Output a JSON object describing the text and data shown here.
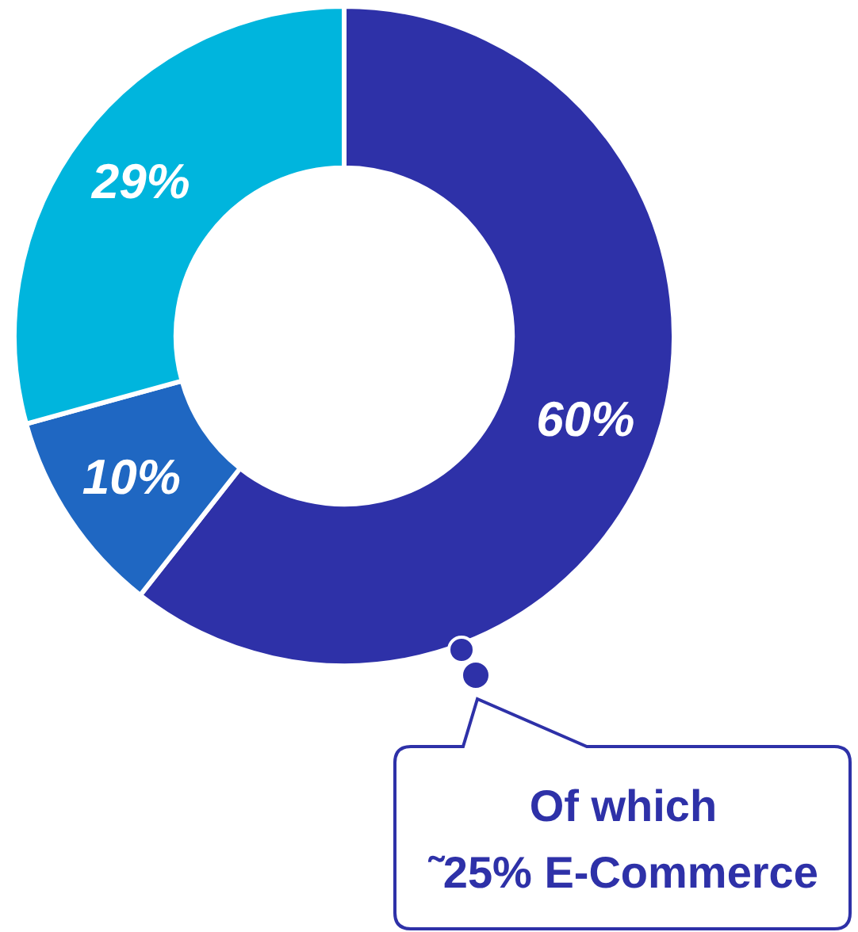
{
  "chart_data": {
    "type": "donut",
    "categories": [
      null,
      null,
      null
    ],
    "values": [
      60,
      10,
      29
    ],
    "colors": [
      "#2e31a8",
      "#1f67c2",
      "#00b5dd"
    ],
    "value_labels": [
      "60%",
      "10%",
      "29%"
    ],
    "annotations": [
      "Of which\n˜25% E-Commerce"
    ]
  }
}
